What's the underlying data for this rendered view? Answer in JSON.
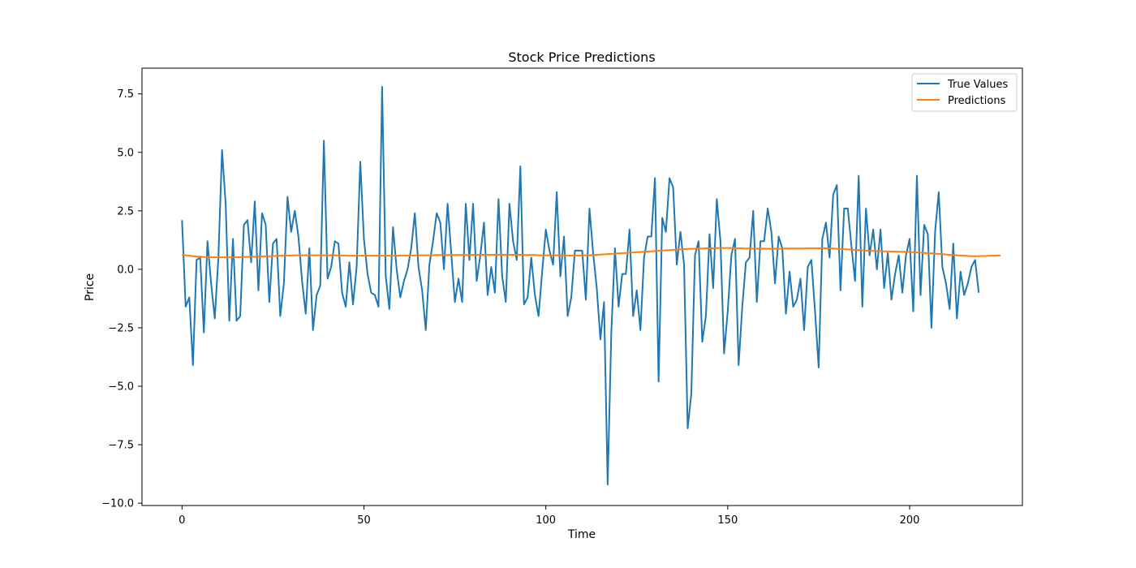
{
  "chart_data": {
    "type": "line",
    "title": "Stock Price Predictions",
    "xlabel": "Time",
    "ylabel": "Price",
    "xlim": [
      -11,
      231
    ],
    "ylim": [
      -10.1,
      8.6
    ],
    "xticks": [
      0,
      50,
      100,
      150,
      200
    ],
    "xtick_labels": [
      "0",
      "50",
      "100",
      "150",
      "200"
    ],
    "yticks": [
      -10.0,
      -7.5,
      -5.0,
      -2.5,
      0.0,
      2.5,
      5.0,
      7.5
    ],
    "ytick_labels": [
      "−10.0",
      "−7.5",
      "−5.0",
      "−2.5",
      "0.0",
      "2.5",
      "5.0",
      "7.5"
    ],
    "grid": false,
    "legend_position": "top-right",
    "series": [
      {
        "name": "True Values",
        "color": "#1f77b4",
        "x_start": 0,
        "x_step": 1,
        "values": [
          2.1,
          -1.6,
          -1.2,
          -4.1,
          0.4,
          0.5,
          -2.7,
          1.2,
          -0.6,
          -2.1,
          0.5,
          5.1,
          2.8,
          -2.2,
          1.3,
          -2.2,
          -2.0,
          1.9,
          2.1,
          0.3,
          2.9,
          -0.9,
          2.4,
          1.9,
          -1.4,
          1.1,
          1.3,
          -2.0,
          -0.6,
          3.1,
          1.6,
          2.5,
          1.4,
          -0.5,
          -1.9,
          0.9,
          -2.6,
          -1.1,
          -0.7,
          5.5,
          -0.4,
          0.1,
          1.2,
          1.1,
          -1.0,
          -1.6,
          0.3,
          -1.5,
          0.1,
          4.6,
          1.3,
          -0.2,
          -1.0,
          -1.1,
          -1.6,
          7.8,
          -0.3,
          -1.7,
          1.8,
          0.0,
          -1.2,
          -0.5,
          0.0,
          0.9,
          2.4,
          0.1,
          -0.9,
          -2.6,
          0.2,
          1.2,
          2.4,
          2.0,
          0.0,
          2.8,
          0.7,
          -1.4,
          -0.4,
          -1.4,
          2.8,
          0.4,
          2.8,
          -0.5,
          0.6,
          2.0,
          -1.1,
          0.1,
          -1.0,
          3.0,
          -0.3,
          -1.4,
          2.8,
          1.2,
          0.4,
          4.4,
          -1.5,
          -1.2,
          0.5,
          -1.1,
          -2.0,
          -0.1,
          1.7,
          0.8,
          0.2,
          3.3,
          -0.3,
          1.4,
          -2.0,
          -1.2,
          0.8,
          0.8,
          0.8,
          -1.3,
          2.6,
          0.7,
          -0.8,
          -3.0,
          -1.4,
          -9.2,
          -2.7,
          0.9,
          -1.6,
          -0.2,
          -0.2,
          1.7,
          -2.0,
          -0.9,
          -2.6,
          0.5,
          1.4,
          1.4,
          3.9,
          -4.8,
          2.2,
          1.6,
          3.9,
          3.5,
          0.2,
          1.6,
          0.2,
          -6.8,
          -5.3,
          0.6,
          1.2,
          -3.1,
          -2.0,
          1.5,
          -0.8,
          3.0,
          1.2,
          -3.6,
          -1.8,
          0.6,
          1.3,
          -4.1,
          -1.6,
          0.3,
          0.5,
          2.5,
          -1.4,
          1.2,
          1.2,
          2.6,
          1.6,
          -0.6,
          1.4,
          0.9,
          -1.9,
          -0.1,
          -1.6,
          -1.3,
          -0.4,
          -2.6,
          0.1,
          0.4,
          -1.8,
          -4.2,
          1.3,
          2.0,
          0.5,
          3.2,
          3.6,
          -0.9,
          2.6,
          2.6,
          1.0,
          -0.5,
          4.0,
          -1.6,
          2.6,
          0.6,
          1.7,
          0.0,
          1.7,
          -0.8,
          0.7,
          -1.3,
          -0.2,
          0.6,
          -1.0,
          0.6,
          1.3,
          -1.8,
          4.0,
          -1.1,
          1.9,
          1.5,
          -2.5,
          1.6,
          3.3,
          0.1,
          -0.6,
          -1.7,
          1.1,
          -2.1,
          -0.1,
          -1.1,
          -0.6,
          0.1,
          0.4,
          -1.0
        ]
      },
      {
        "name": "Predictions",
        "color": "#ff7f0e",
        "x_start": 0,
        "x_step": 1,
        "values": [
          0.62,
          0.6,
          0.58,
          0.56,
          0.55,
          0.54,
          0.53,
          0.52,
          0.52,
          0.51,
          0.51,
          0.51,
          0.51,
          0.51,
          0.51,
          0.52,
          0.52,
          0.53,
          0.53,
          0.54,
          0.54,
          0.55,
          0.55,
          0.56,
          0.56,
          0.57,
          0.57,
          0.58,
          0.58,
          0.59,
          0.59,
          0.6,
          0.6,
          0.6,
          0.6,
          0.6,
          0.6,
          0.6,
          0.6,
          0.6,
          0.6,
          0.6,
          0.6,
          0.59,
          0.59,
          0.59,
          0.58,
          0.58,
          0.58,
          0.58,
          0.58,
          0.58,
          0.58,
          0.58,
          0.58,
          0.58,
          0.58,
          0.58,
          0.58,
          0.58,
          0.59,
          0.59,
          0.59,
          0.59,
          0.59,
          0.6,
          0.6,
          0.6,
          0.6,
          0.6,
          0.61,
          0.61,
          0.61,
          0.61,
          0.61,
          0.61,
          0.61,
          0.61,
          0.61,
          0.61,
          0.62,
          0.62,
          0.62,
          0.62,
          0.62,
          0.62,
          0.62,
          0.62,
          0.62,
          0.62,
          0.62,
          0.62,
          0.62,
          0.62,
          0.61,
          0.61,
          0.61,
          0.61,
          0.6,
          0.6,
          0.6,
          0.6,
          0.6,
          0.6,
          0.6,
          0.59,
          0.59,
          0.59,
          0.59,
          0.59,
          0.59,
          0.6,
          0.6,
          0.61,
          0.62,
          0.63,
          0.64,
          0.65,
          0.66,
          0.67,
          0.68,
          0.69,
          0.7,
          0.71,
          0.72,
          0.73,
          0.74,
          0.75,
          0.76,
          0.77,
          0.78,
          0.79,
          0.8,
          0.81,
          0.82,
          0.83,
          0.84,
          0.85,
          0.86,
          0.87,
          0.88,
          0.88,
          0.89,
          0.89,
          0.9,
          0.9,
          0.9,
          0.91,
          0.91,
          0.91,
          0.91,
          0.91,
          0.9,
          0.9,
          0.9,
          0.89,
          0.89,
          0.88,
          0.88,
          0.88,
          0.88,
          0.88,
          0.88,
          0.88,
          0.88,
          0.88,
          0.89,
          0.89,
          0.89,
          0.89,
          0.89,
          0.89,
          0.9,
          0.9,
          0.9,
          0.9,
          0.9,
          0.9,
          0.9,
          0.89,
          0.88,
          0.87,
          0.86,
          0.85,
          0.84,
          0.83,
          0.82,
          0.81,
          0.8,
          0.79,
          0.79,
          0.78,
          0.78,
          0.77,
          0.77,
          0.76,
          0.76,
          0.75,
          0.75,
          0.74,
          0.74,
          0.73,
          0.72,
          0.71,
          0.7,
          0.69,
          0.68,
          0.67,
          0.66,
          0.65,
          0.63,
          0.62,
          0.61,
          0.6,
          0.59,
          0.58,
          0.57,
          0.56,
          0.56,
          0.56,
          0.57,
          0.57,
          0.58,
          0.58,
          0.59,
          0.59
        ]
      }
    ]
  }
}
